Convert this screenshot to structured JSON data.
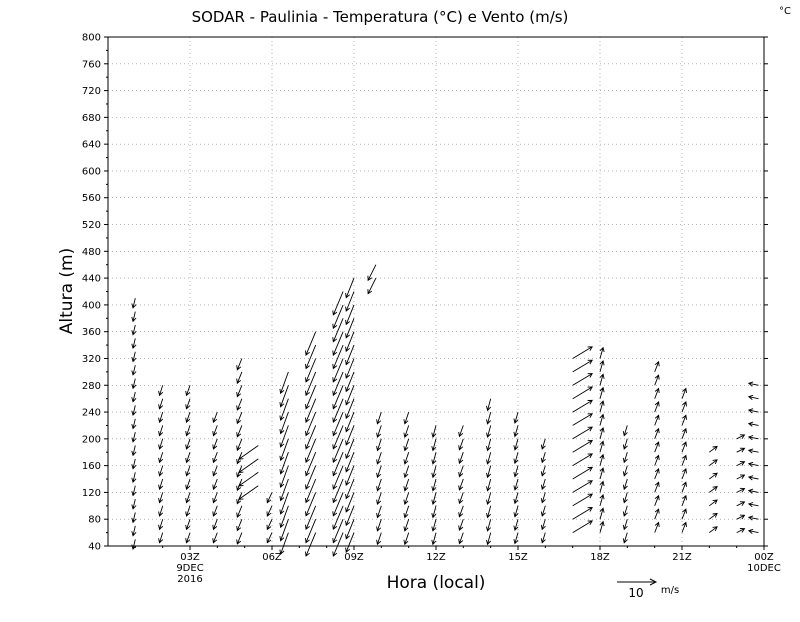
{
  "chart_data": {
    "type": "wind-barb-time-height",
    "title": "SODAR - Paulinia - Temperatura (°C) e Vento (m/s)",
    "corner_unit": "°C",
    "xlabel": "Hora (local)",
    "ylabel": "Altura (m)",
    "ylim": [
      40,
      800
    ],
    "y_ticks": [
      40,
      80,
      120,
      160,
      200,
      240,
      280,
      320,
      360,
      400,
      440,
      480,
      520,
      560,
      600,
      640,
      680,
      720,
      760,
      800
    ],
    "xlim_hours": [
      0,
      24
    ],
    "x_ticks": [
      {
        "hour": 3,
        "label": "03Z",
        "sub1": "9DEC",
        "sub2": "2016"
      },
      {
        "hour": 6,
        "label": "06Z",
        "sub1": "",
        "sub2": ""
      },
      {
        "hour": 9,
        "label": "09Z",
        "sub1": "",
        "sub2": ""
      },
      {
        "hour": 12,
        "label": "12Z",
        "sub1": "",
        "sub2": ""
      },
      {
        "hour": 15,
        "label": "15Z",
        "sub1": "",
        "sub2": ""
      },
      {
        "hour": 18,
        "label": "18Z",
        "sub1": "",
        "sub2": ""
      },
      {
        "hour": 21,
        "label": "21Z",
        "sub1": "",
        "sub2": ""
      },
      {
        "hour": 24,
        "label": "00Z",
        "sub1": "10DEC",
        "sub2": ""
      }
    ],
    "grid": true,
    "reference_vector": {
      "speed": 10,
      "label": "10",
      "unit": "m/s"
    },
    "wind_profiles": [
      {
        "hour": 1.0,
        "heights": [
          50,
          420
        ],
        "u": -0.6,
        "v": -2.5
      },
      {
        "hour": 2.0,
        "heights": [
          60,
          280
        ],
        "u": -0.8,
        "v": -2.6
      },
      {
        "hour": 3.0,
        "heights": [
          60,
          280
        ],
        "u": -0.9,
        "v": -2.6
      },
      {
        "hour": 4.0,
        "heights": [
          60,
          240
        ],
        "u": -1.0,
        "v": -2.6
      },
      {
        "hour": 4.9,
        "heights": [
          60,
          320
        ],
        "u": -1.2,
        "v": -2.9
      },
      {
        "hour": 5.5,
        "heights": [
          130,
          200
        ],
        "u": -5.0,
        "v": -3.5
      },
      {
        "hour": 6.0,
        "heights": [
          60,
          130
        ],
        "u": -1.2,
        "v": -2.6
      },
      {
        "hour": 6.6,
        "heights": [
          60,
          300
        ],
        "u": -2.0,
        "v": -5.5
      },
      {
        "hour": 7.6,
        "heights": [
          60,
          360
        ],
        "u": -2.5,
        "v": -6.0
      },
      {
        "hour": 8.6,
        "heights": [
          60,
          420
        ],
        "u": -2.5,
        "v": -6.0
      },
      {
        "hour": 9.0,
        "heights": [
          60,
          440
        ],
        "u": -2.0,
        "v": -5.0
      },
      {
        "hour": 9.8,
        "heights": [
          440,
          460
        ],
        "u": -2.0,
        "v": -4.0
      },
      {
        "hour": 10.0,
        "heights": [
          60,
          240
        ],
        "u": -1.0,
        "v": -3.0
      },
      {
        "hour": 11.0,
        "heights": [
          60,
          240
        ],
        "u": -1.0,
        "v": -3.0
      },
      {
        "hour": 12.0,
        "heights": [
          60,
          220
        ],
        "u": -0.8,
        "v": -3.0
      },
      {
        "hour": 13.0,
        "heights": [
          60,
          220
        ],
        "u": -1.0,
        "v": -2.8
      },
      {
        "hour": 14.0,
        "heights": [
          60,
          260
        ],
        "u": -0.8,
        "v": -3.0
      },
      {
        "hour": 15.0,
        "heights": [
          60,
          240
        ],
        "u": -0.8,
        "v": -2.8
      },
      {
        "hour": 16.0,
        "heights": [
          60,
          200
        ],
        "u": -0.8,
        "v": -2.6
      },
      {
        "hour": 17.0,
        "heights": [
          60,
          320
        ],
        "u": 5.0,
        "v": 3.0
      },
      {
        "hour": 18.0,
        "heights": [
          60,
          330
        ],
        "u": 0.8,
        "v": 2.8
      },
      {
        "hour": 19.0,
        "heights": [
          60,
          220
        ],
        "u": -0.8,
        "v": -2.6
      },
      {
        "hour": 20.0,
        "heights": [
          60,
          310
        ],
        "u": 1.0,
        "v": 2.6
      },
      {
        "hour": 21.0,
        "heights": [
          60,
          270
        ],
        "u": 1.0,
        "v": 2.6
      },
      {
        "hour": 22.0,
        "heights": [
          60,
          190
        ],
        "u": 2.0,
        "v": 1.5
      },
      {
        "hour": 23.0,
        "heights": [
          60,
          210
        ],
        "u": 2.0,
        "v": 1.0
      },
      {
        "hour": 23.8,
        "heights": [
          60,
          290
        ],
        "u": -2.5,
        "v": 0.5
      }
    ]
  }
}
